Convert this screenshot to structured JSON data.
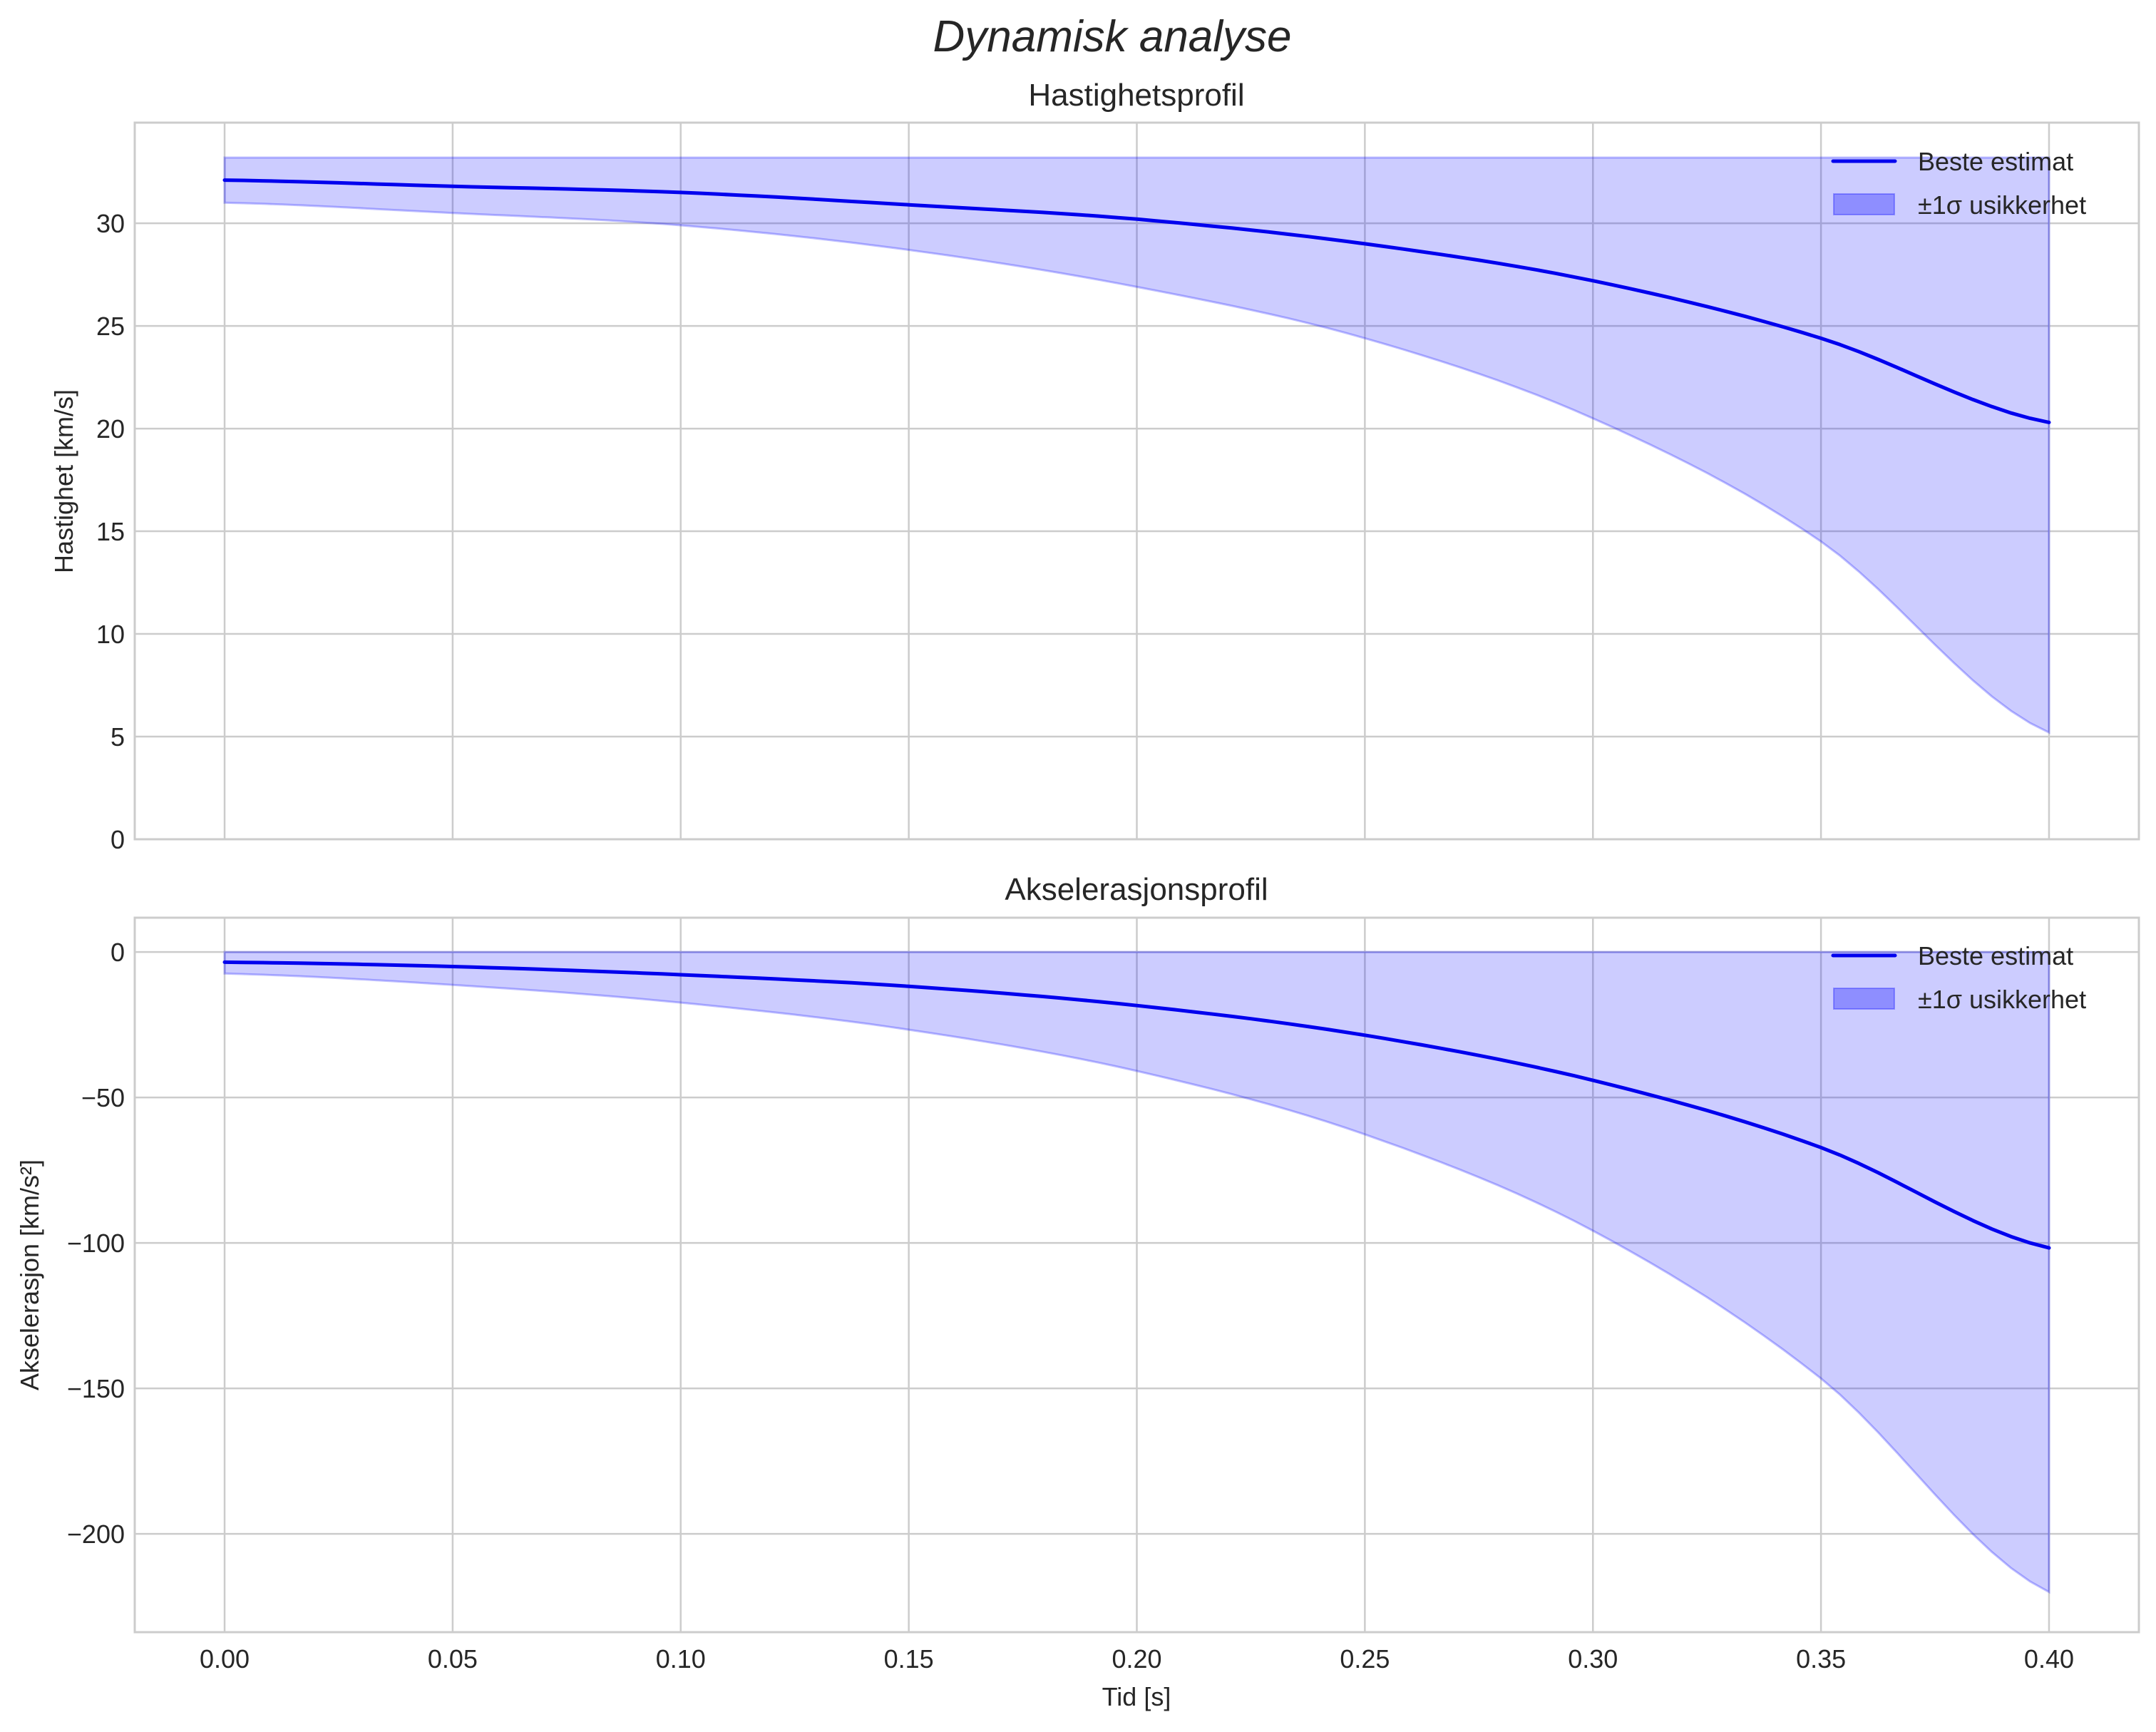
{
  "figure": {
    "title": "Dynamisk analyse",
    "background": "#ffffff",
    "grid_color": "#cccccc",
    "spine_color": "#cccccc",
    "line_color": "#0000ee",
    "band_color": "#0000ff",
    "band_alpha": 0.2,
    "legend_patch_alpha": 0.3
  },
  "chart_data": [
    {
      "type": "line",
      "title": "Hastighetsprofil",
      "xlabel": "",
      "ylabel": "Hastighet [km/s]",
      "xlim": [
        -0.0197,
        0.4197
      ],
      "ylim": [
        0,
        34.9
      ],
      "xticks": [
        0.0,
        0.05,
        0.1,
        0.15,
        0.2,
        0.25,
        0.3,
        0.35,
        0.4
      ],
      "xtick_labels": [],
      "yticks": [
        0,
        5,
        10,
        15,
        20,
        25,
        30
      ],
      "ytick_labels": [
        "0",
        "5",
        "10",
        "15",
        "20",
        "25",
        "30"
      ],
      "grid": true,
      "legend_position": "upper right",
      "x": [
        0.0,
        0.05,
        0.1,
        0.15,
        0.2,
        0.25,
        0.3,
        0.35,
        0.4
      ],
      "series": [
        {
          "name": "Beste estimat",
          "kind": "line",
          "values": [
            32.1,
            31.8,
            31.5,
            30.9,
            30.2,
            29.0,
            27.2,
            24.4,
            20.3
          ]
        },
        {
          "name": "±1σ usikkerhet",
          "kind": "band",
          "upper": [
            33.2,
            33.2,
            33.2,
            33.2,
            33.2,
            33.2,
            33.2,
            33.2,
            33.2
          ],
          "lower": [
            31.0,
            30.5,
            29.9,
            28.7,
            26.9,
            24.4,
            20.5,
            14.5,
            5.2
          ]
        }
      ]
    },
    {
      "type": "line",
      "title": "Akselerasjonsprofil",
      "xlabel": "Tid [s]",
      "ylabel": "Akselerasjon [km/s²]",
      "xlim": [
        -0.0197,
        0.4197
      ],
      "ylim": [
        -233.8,
        11.8
      ],
      "xticks": [
        0.0,
        0.05,
        0.1,
        0.15,
        0.2,
        0.25,
        0.3,
        0.35,
        0.4
      ],
      "xtick_labels": [
        "0.00",
        "0.05",
        "0.10",
        "0.15",
        "0.20",
        "0.25",
        "0.30",
        "0.35",
        "0.40"
      ],
      "yticks": [
        0,
        -50,
        -100,
        -150,
        -200
      ],
      "ytick_labels": [
        "0",
        "−50",
        "−100",
        "−150",
        "−200"
      ],
      "grid": true,
      "legend_position": "upper right",
      "x": [
        0.0,
        0.05,
        0.1,
        0.15,
        0.2,
        0.25,
        0.3,
        0.35,
        0.4
      ],
      "series": [
        {
          "name": "Beste estimat",
          "kind": "line",
          "values": [
            -3.5,
            -5.0,
            -7.8,
            -11.8,
            -18.4,
            -28.6,
            -44.1,
            -67.2,
            -101.7
          ]
        },
        {
          "name": "±1σ usikkerhet",
          "kind": "band",
          "upper": [
            0,
            0,
            0,
            0,
            0,
            0,
            0,
            0,
            0
          ],
          "lower": [
            -7.4,
            -11.3,
            -17.4,
            -26.7,
            -40.9,
            -62.7,
            -95.8,
            -146.6,
            -220.0
          ]
        }
      ]
    }
  ]
}
